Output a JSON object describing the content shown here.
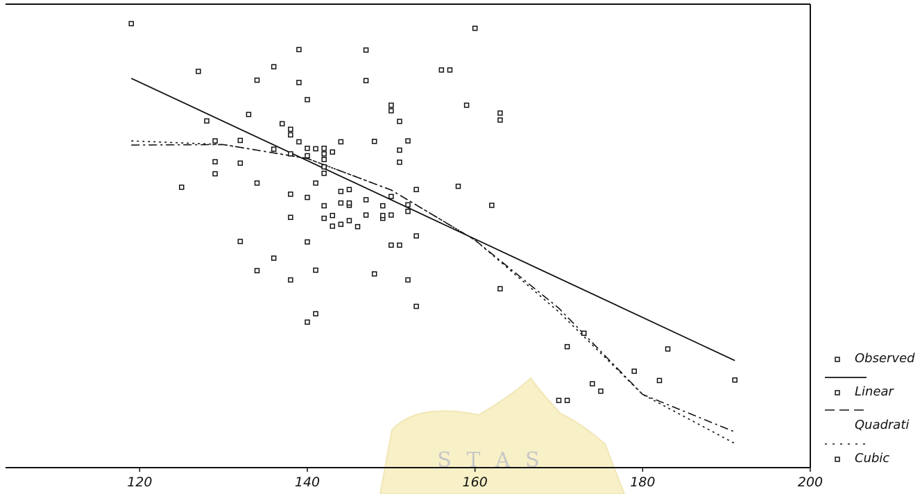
{
  "chart_data": {
    "type": "scatter",
    "title": "",
    "xlabel": "",
    "ylabel": "",
    "xlim": [
      104,
      200
    ],
    "xticks": [
      120,
      140,
      160,
      180,
      200
    ],
    "xtick_labels": [
      "120",
      "140",
      "160",
      "180",
      "200"
    ],
    "ylim": [
      0,
      1
    ],
    "grid": false,
    "legend_position": "right",
    "observed_points": [
      [
        119,
        0.958
      ],
      [
        127,
        0.855
      ],
      [
        128,
        0.748
      ],
      [
        129,
        0.705
      ],
      [
        129,
        0.66
      ],
      [
        129,
        0.634
      ],
      [
        125,
        0.605
      ],
      [
        132,
        0.706
      ],
      [
        132,
        0.657
      ],
      [
        132,
        0.488
      ],
      [
        133,
        0.762
      ],
      [
        134,
        0.836
      ],
      [
        134,
        0.614
      ],
      [
        134,
        0.425
      ],
      [
        136,
        0.865
      ],
      [
        136,
        0.452
      ],
      [
        136,
        0.687
      ],
      [
        137,
        0.742
      ],
      [
        138,
        0.73
      ],
      [
        138,
        0.718
      ],
      [
        138,
        0.677
      ],
      [
        138,
        0.59
      ],
      [
        138,
        0.54
      ],
      [
        138,
        0.405
      ],
      [
        139,
        0.902
      ],
      [
        139,
        0.831
      ],
      [
        139,
        0.703
      ],
      [
        140,
        0.794
      ],
      [
        140,
        0.689
      ],
      [
        140,
        0.673
      ],
      [
        140,
        0.583
      ],
      [
        140,
        0.487
      ],
      [
        140,
        0.314
      ],
      [
        141,
        0.688
      ],
      [
        141,
        0.614
      ],
      [
        141,
        0.426
      ],
      [
        141,
        0.332
      ],
      [
        142,
        0.689
      ],
      [
        142,
        0.677
      ],
      [
        142,
        0.665
      ],
      [
        142,
        0.649
      ],
      [
        142,
        0.635
      ],
      [
        142,
        0.565
      ],
      [
        142,
        0.538
      ],
      [
        143,
        0.681
      ],
      [
        143,
        0.521
      ],
      [
        143,
        0.544
      ],
      [
        144,
        0.703
      ],
      [
        144,
        0.596
      ],
      [
        144,
        0.571
      ],
      [
        144,
        0.525
      ],
      [
        145,
        0.566
      ],
      [
        145,
        0.571
      ],
      [
        145,
        0.6
      ],
      [
        145,
        0.533
      ],
      [
        146,
        0.52
      ],
      [
        147,
        0.901
      ],
      [
        147,
        0.835
      ],
      [
        147,
        0.578
      ],
      [
        147,
        0.545
      ],
      [
        148,
        0.704
      ],
      [
        148,
        0.418
      ],
      [
        149,
        0.565
      ],
      [
        149,
        0.538
      ],
      [
        149,
        0.544
      ],
      [
        150,
        0.782
      ],
      [
        150,
        0.77
      ],
      [
        150,
        0.585
      ],
      [
        150,
        0.545
      ],
      [
        150,
        0.48
      ],
      [
        151,
        0.747
      ],
      [
        151,
        0.685
      ],
      [
        151,
        0.659
      ],
      [
        151,
        0.48
      ],
      [
        152,
        0.705
      ],
      [
        152,
        0.567
      ],
      [
        152,
        0.553
      ],
      [
        152,
        0.405
      ],
      [
        153,
        0.6
      ],
      [
        153,
        0.5
      ],
      [
        153,
        0.348
      ],
      [
        156,
        0.858
      ],
      [
        157,
        0.858
      ],
      [
        158,
        0.607
      ],
      [
        159,
        0.782
      ],
      [
        160,
        0.948
      ],
      [
        162,
        0.566
      ],
      [
        163,
        0.765
      ],
      [
        163,
        0.75
      ],
      [
        163,
        0.386
      ],
      [
        171,
        0.261
      ],
      [
        173,
        0.29
      ],
      [
        174,
        0.181
      ],
      [
        175,
        0.165
      ],
      [
        170,
        0.145
      ],
      [
        171,
        0.145
      ],
      [
        179,
        0.208
      ],
      [
        182,
        0.188
      ],
      [
        183,
        0.256
      ],
      [
        191,
        0.189
      ]
    ],
    "series": [
      {
        "name": "Linear",
        "style": "solid",
        "x": [
          119,
          191
        ],
        "y": [
          0.84,
          0.231
        ]
      },
      {
        "name": "Quadrati",
        "style": "dashed",
        "x": [
          119,
          130,
          140,
          150,
          160,
          170,
          180,
          191
        ],
        "y": [
          0.696,
          0.697,
          0.667,
          0.599,
          0.491,
          0.344,
          0.158,
          0.077
        ]
      },
      {
        "name": "Cubic",
        "style": "dotted",
        "x": [
          119,
          130,
          140,
          150,
          160,
          170,
          180,
          191
        ],
        "y": [
          0.705,
          0.697,
          0.667,
          0.599,
          0.491,
          0.336,
          0.158,
          0.052
        ]
      }
    ],
    "legend": [
      {
        "label": "Observed",
        "marker": "square",
        "line": "none"
      },
      {
        "label": "Linear",
        "marker": "square",
        "line": "solid"
      },
      {
        "label": "Quadrati",
        "marker": "none",
        "line": "dashed"
      },
      {
        "label": "Cubic",
        "marker": "square",
        "line": "dotted"
      }
    ],
    "watermark_text": "S  T  A  S"
  }
}
